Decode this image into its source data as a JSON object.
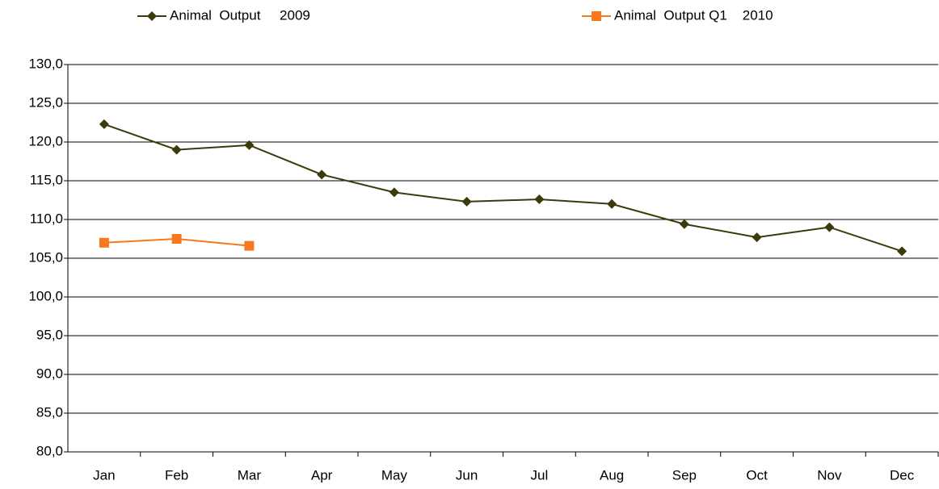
{
  "chart_data": {
    "type": "line",
    "categories": [
      "Jan",
      "Feb",
      "Mar",
      "Apr",
      "May",
      "Jun",
      "Jul",
      "Aug",
      "Sep",
      "Oct",
      "Nov",
      "Dec"
    ],
    "series": [
      {
        "name": "Animal  Output     2009",
        "color": "#3b3a0a",
        "marker": "diamond",
        "values": [
          122.3,
          119.0,
          119.6,
          115.8,
          113.5,
          112.3,
          112.6,
          112.0,
          109.4,
          107.7,
          109.0,
          105.9
        ]
      },
      {
        "name": "Animal  Output Q1    2010",
        "color": "#f7781e",
        "marker": "square",
        "values": [
          107.0,
          107.5,
          106.6,
          null,
          null,
          null,
          null,
          null,
          null,
          null,
          null,
          null
        ]
      }
    ],
    "ylim": [
      80,
      130
    ],
    "yticks": [
      {
        "value": 80,
        "label": "80,0"
      },
      {
        "value": 85,
        "label": "85,0"
      },
      {
        "value": 90,
        "label": "90,0"
      },
      {
        "value": 95,
        "label": "95,0"
      },
      {
        "value": 100,
        "label": "100,0"
      },
      {
        "value": 105,
        "label": "105,0"
      },
      {
        "value": 110,
        "label": "110,0"
      },
      {
        "value": 115,
        "label": "115,0"
      },
      {
        "value": 120,
        "label": "120,0"
      },
      {
        "value": 125,
        "label": "125,0"
      },
      {
        "value": 130,
        "label": "130,0"
      }
    ],
    "grid": true,
    "legend": "top"
  }
}
